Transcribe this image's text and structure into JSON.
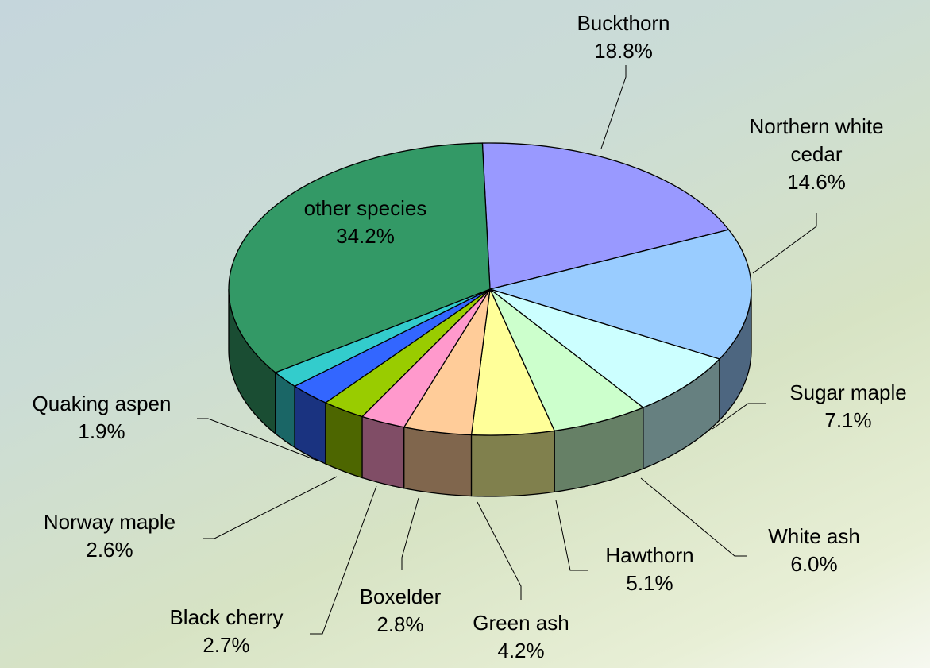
{
  "chart_data": {
    "type": "pie",
    "style": "3d-pie",
    "slices": [
      {
        "label": "Buckthorn",
        "pct_label": "18.8%",
        "value": 18.8,
        "color": "#9999ff"
      },
      {
        "label": "Northern white cedar",
        "label_lines": [
          "Northern white",
          "cedar"
        ],
        "pct_label": "14.6%",
        "value": 14.6,
        "color": "#99ccff"
      },
      {
        "label": "Sugar maple",
        "pct_label": "7.1%",
        "value": 7.1,
        "color": "#ccffff"
      },
      {
        "label": "White ash",
        "pct_label": "6.0%",
        "value": 6.0,
        "color": "#ccffcc"
      },
      {
        "label": "Hawthorn",
        "pct_label": "5.1%",
        "value": 5.1,
        "color": "#ffff99"
      },
      {
        "label": "Green ash",
        "pct_label": "4.2%",
        "value": 4.2,
        "color": "#ffcc99"
      },
      {
        "label": "Boxelder",
        "pct_label": "2.8%",
        "value": 2.8,
        "color": "#ff99cc"
      },
      {
        "label": "Black cherry",
        "pct_label": "2.7%",
        "value": 2.7,
        "color": "#99cc00"
      },
      {
        "label": "Norway maple",
        "pct_label": "2.6%",
        "value": 2.6,
        "color": "#3366ff"
      },
      {
        "label": "Quaking aspen",
        "pct_label": "1.9%",
        "value": 1.9,
        "color": "#33cccc"
      },
      {
        "label": "other species",
        "pct_label": "34.2%",
        "value": 34.2,
        "color": "#339966"
      }
    ]
  }
}
